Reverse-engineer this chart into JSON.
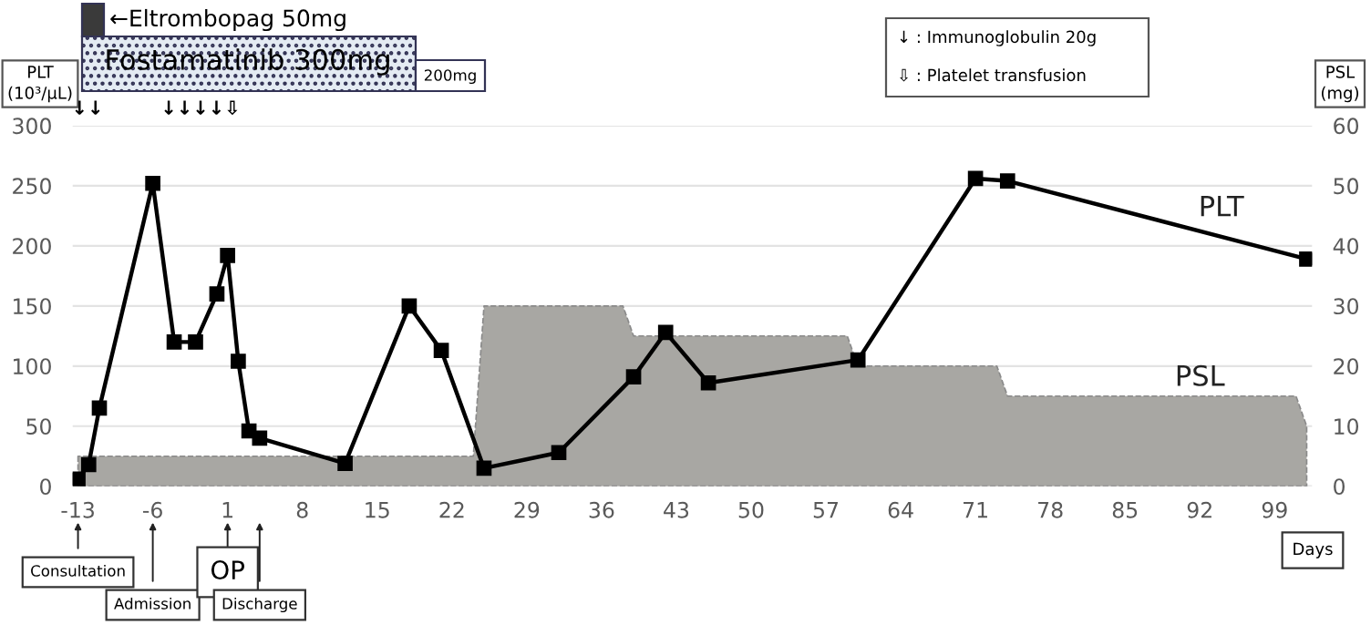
{
  "chart_data": {
    "type": "line",
    "xlabel": "Days",
    "ylabel": "PLT\n(10³/μL)",
    "y2label": "PSL\n(mg)",
    "xlim": [
      -13.5,
      102.5
    ],
    "xticks": [
      -13,
      -6,
      1,
      8,
      15,
      22,
      29,
      36,
      43,
      50,
      57,
      64,
      71,
      78,
      85,
      92,
      99
    ],
    "ylim": [
      0,
      300
    ],
    "yticks": [
      0,
      50,
      100,
      150,
      200,
      250,
      300
    ],
    "y2lim": [
      0,
      60
    ],
    "y2ticks": [
      0,
      10,
      20,
      30,
      40,
      50,
      60
    ],
    "grid": "y",
    "line_style": "solid",
    "series": [
      {
        "name": "PSL",
        "type": "area",
        "axis": "y2",
        "color": "#a8a7a3",
        "x": [
          -13,
          24,
          25,
          38,
          39,
          59,
          60,
          73,
          74,
          101,
          102
        ],
        "values": [
          5,
          5,
          30,
          30,
          25,
          25,
          20,
          20,
          15,
          15,
          10
        ]
      },
      {
        "name": "PLT",
        "color": "#000000",
        "marker": "square",
        "x": [
          -13,
          -12,
          -11,
          -6,
          -4,
          -2,
          0,
          1,
          2,
          3,
          4,
          12,
          18,
          21,
          25,
          32,
          39,
          42,
          46,
          60,
          71,
          74,
          102
        ],
        "values": [
          6,
          18,
          65,
          252,
          120,
          120,
          160,
          192,
          104,
          46,
          40,
          19,
          150,
          113,
          15,
          28,
          91,
          128,
          86,
          105,
          256,
          254,
          189
        ]
      }
    ],
    "annotations": [
      "←Eltrombopag 50mg",
      "Fostamatinib 300mg",
      "200mg",
      "↓ : Immunoglobulin 20g",
      "⇩ : Platelet transfusion",
      "↓↓",
      "↓↓↓↓⇩",
      {
        "text": "Consultation",
        "x": -13
      },
      {
        "text": "Admission",
        "x": -6
      },
      {
        "text": "OP",
        "x": 1
      },
      {
        "text": "Discharge",
        "x": 4
      }
    ]
  }
}
